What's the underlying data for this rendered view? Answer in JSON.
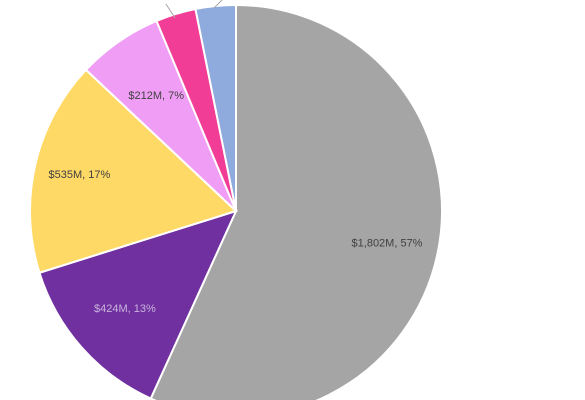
{
  "chart_data": {
    "type": "pie",
    "slices": [
      {
        "value": 1802,
        "percent": 57,
        "label": "$1,802M, 57%",
        "color": "#a5a5a5",
        "label_color": "#404040"
      },
      {
        "value": 424,
        "percent": 13,
        "label": "$424M, 13%",
        "color": "#7030a0",
        "label_color": "#c9b3dc"
      },
      {
        "value": 535,
        "percent": 17,
        "label": "$535M, 17%",
        "color": "#ffd966",
        "label_color": "#404040"
      },
      {
        "value": 212,
        "percent": 7,
        "label": "$212M, 7%",
        "color": "#f09ef5",
        "label_color": "#404040"
      },
      {
        "value": 100,
        "percent": 3,
        "label": "",
        "color": "#f23d97",
        "label_color": "#404040"
      },
      {
        "value": 100,
        "percent": 3,
        "label": "",
        "color": "#8faadc",
        "label_color": "#404040"
      }
    ]
  }
}
